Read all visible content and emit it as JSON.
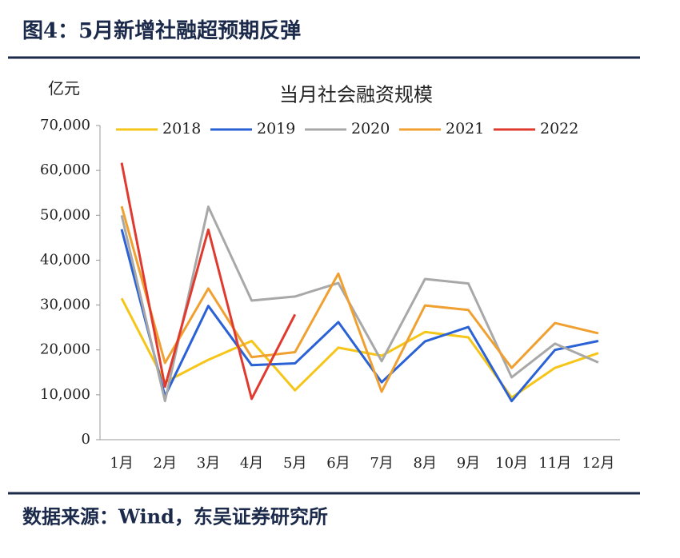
{
  "header": {
    "title": "图4：5月新增社融超预期反弹"
  },
  "footer": {
    "source": "数据来源：Wind，东吴证券研究所"
  },
  "chart_data": {
    "type": "line",
    "title": "当月社会融资规模",
    "y_unit": "亿元",
    "categories": [
      "1月",
      "2月",
      "3月",
      "4月",
      "5月",
      "6月",
      "7月",
      "8月",
      "9月",
      "10月",
      "11月",
      "12月"
    ],
    "series": [
      {
        "name": "2018",
        "color": "#f5c518",
        "values": [
          31500,
          12800,
          17800,
          22000,
          11000,
          20500,
          18700,
          24000,
          22800,
          9400,
          16000,
          19300
        ]
      },
      {
        "name": "2019",
        "color": "#2a62d6",
        "values": [
          46900,
          9700,
          29800,
          16600,
          17000,
          26200,
          12800,
          21900,
          25100,
          8600,
          20000,
          22000
        ]
      },
      {
        "name": "2020",
        "color": "#a8a8a8",
        "values": [
          50000,
          8600,
          51900,
          31000,
          31900,
          34900,
          17500,
          35800,
          34800,
          13900,
          21400,
          17200
        ]
      },
      {
        "name": "2021",
        "color": "#f0a030",
        "values": [
          52000,
          17100,
          33700,
          18400,
          19500,
          37000,
          10700,
          29900,
          28900,
          16000,
          26000,
          23700
        ]
      },
      {
        "name": "2022",
        "color": "#e03a2f",
        "values": [
          61700,
          11800,
          46800,
          9100,
          27900,
          null,
          null,
          null,
          null,
          null,
          null,
          null
        ]
      }
    ],
    "ylim": [
      0,
      70000
    ],
    "yticks": [
      0,
      {
        "value": 10000,
        "label": "10,000"
      },
      {
        "value": 20000,
        "label": "20,000"
      },
      {
        "value": 30000,
        "label": "30,000"
      },
      {
        "value": 40000,
        "label": "40,000"
      },
      {
        "value": 50000,
        "label": "50,000"
      },
      {
        "value": 60000,
        "label": "60,000"
      },
      {
        "value": 70000,
        "label": "70,000"
      }
    ],
    "grid": false,
    "legend": "top"
  }
}
